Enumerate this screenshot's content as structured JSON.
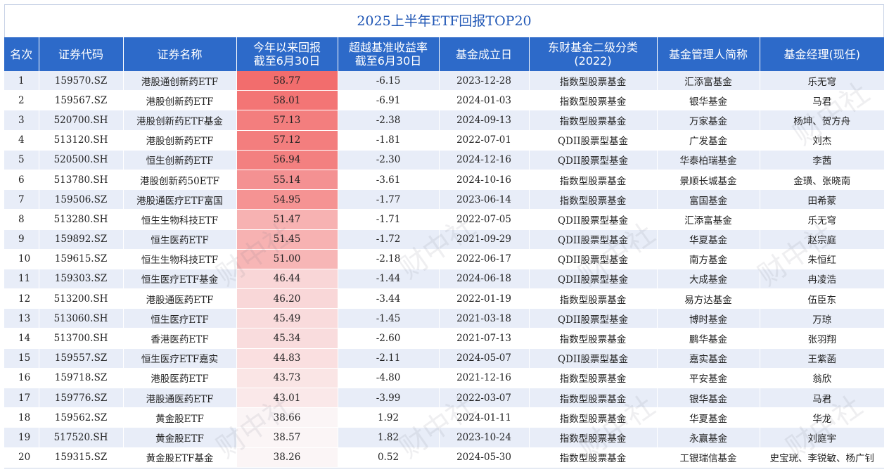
{
  "title": "2025上半年ETF回报TOP20",
  "watermark": "财中社",
  "headers": [
    "名次",
    "证券代码",
    "证券名称",
    "今年以来回报\n截至6月30日",
    "超越基准收益率\n截至6月30日",
    "基金成立日",
    "东财基金二级分类\n(2022)",
    "基金管理人简称",
    "基金经理(现任)"
  ],
  "colors": {
    "header_bg": "#2d6ac9",
    "title_color": "#1f56b5",
    "stripe": "#e8edf8",
    "heat_high": "#f26d6d",
    "heat_low": "#fbf5f6"
  },
  "rows": [
    {
      "rank": "1",
      "code": "159570.SZ",
      "name": "港股通创新药ETF",
      "ret": "58.77",
      "excess": "-6.15",
      "date": "2023-12-28",
      "category": "指数型股票基金",
      "manager": "汇添富基金",
      "fm": "乐无穹"
    },
    {
      "rank": "2",
      "code": "159567.SZ",
      "name": "港股创新药ETF",
      "ret": "58.01",
      "excess": "-6.91",
      "date": "2024-01-03",
      "category": "指数型股票基金",
      "manager": "银华基金",
      "fm": "马君"
    },
    {
      "rank": "3",
      "code": "520700.SH",
      "name": "港股创新药ETF基金",
      "ret": "57.13",
      "excess": "-2.38",
      "date": "2024-09-13",
      "category": "指数型股票基金",
      "manager": "万家基金",
      "fm": "杨坤、贺方舟"
    },
    {
      "rank": "4",
      "code": "513120.SH",
      "name": "港股创新药ETF",
      "ret": "57.12",
      "excess": "-1.81",
      "date": "2022-07-01",
      "category": "QDII股票型基金",
      "manager": "广发基金",
      "fm": "刘杰"
    },
    {
      "rank": "5",
      "code": "520500.SH",
      "name": "恒生创新药ETF",
      "ret": "56.94",
      "excess": "-2.30",
      "date": "2024-12-16",
      "category": "QDII股票型基金",
      "manager": "华泰柏瑞基金",
      "fm": "李茜"
    },
    {
      "rank": "6",
      "code": "513780.SH",
      "name": "港股创新药50ETF",
      "ret": "55.14",
      "excess": "-3.61",
      "date": "2024-10-16",
      "category": "指数型股票基金",
      "manager": "景顺长城基金",
      "fm": "金璜、张晓南"
    },
    {
      "rank": "7",
      "code": "159506.SZ",
      "name": "港股通医疗ETF富国",
      "ret": "54.95",
      "excess": "-1.77",
      "date": "2023-06-14",
      "category": "指数型股票基金",
      "manager": "富国基金",
      "fm": "田希蒙"
    },
    {
      "rank": "8",
      "code": "513280.SH",
      "name": "恒生生物科技ETF",
      "ret": "51.47",
      "excess": "-1.71",
      "date": "2022-07-05",
      "category": "QDII股票型基金",
      "manager": "汇添富基金",
      "fm": "乐无穹"
    },
    {
      "rank": "9",
      "code": "159892.SZ",
      "name": "恒生医药ETF",
      "ret": "51.45",
      "excess": "-1.72",
      "date": "2021-09-29",
      "category": "QDII股票型基金",
      "manager": "华夏基金",
      "fm": "赵宗庭"
    },
    {
      "rank": "10",
      "code": "159615.SZ",
      "name": "恒生生物科技ETF",
      "ret": "51.00",
      "excess": "-2.18",
      "date": "2022-06-17",
      "category": "QDII股票型基金",
      "manager": "南方基金",
      "fm": "朱恒红"
    },
    {
      "rank": "11",
      "code": "159303.SZ",
      "name": "恒生医疗ETF基金",
      "ret": "46.44",
      "excess": "-1.44",
      "date": "2024-06-18",
      "category": "QDII股票型基金",
      "manager": "大成基金",
      "fm": "冉凌浩"
    },
    {
      "rank": "12",
      "code": "513200.SH",
      "name": "港股通医药ETF",
      "ret": "46.20",
      "excess": "-3.44",
      "date": "2022-01-19",
      "category": "指数型股票基金",
      "manager": "易方达基金",
      "fm": "伍臣东"
    },
    {
      "rank": "13",
      "code": "513060.SH",
      "name": "恒生医疗ETF",
      "ret": "45.49",
      "excess": "-1.45",
      "date": "2021-03-18",
      "category": "QDII股票型基金",
      "manager": "博时基金",
      "fm": "万琼"
    },
    {
      "rank": "14",
      "code": "513700.SH",
      "name": "香港医药ETF",
      "ret": "45.34",
      "excess": "-2.60",
      "date": "2021-07-13",
      "category": "指数型股票基金",
      "manager": "鹏华基金",
      "fm": "张羽翔"
    },
    {
      "rank": "15",
      "code": "159557.SZ",
      "name": "恒生医疗ETF嘉实",
      "ret": "44.83",
      "excess": "-2.11",
      "date": "2024-05-07",
      "category": "QDII股票型基金",
      "manager": "嘉实基金",
      "fm": "王紫菡"
    },
    {
      "rank": "16",
      "code": "159718.SZ",
      "name": "港股医药ETF",
      "ret": "43.73",
      "excess": "-4.80",
      "date": "2021-12-16",
      "category": "指数型股票基金",
      "manager": "平安基金",
      "fm": "翁欣"
    },
    {
      "rank": "17",
      "code": "159776.SZ",
      "name": "港股通医药ETF",
      "ret": "43.01",
      "excess": "-3.99",
      "date": "2022-03-07",
      "category": "指数型股票基金",
      "manager": "银华基金",
      "fm": "马君"
    },
    {
      "rank": "18",
      "code": "159562.SZ",
      "name": "黄金股ETF",
      "ret": "38.66",
      "excess": "1.92",
      "date": "2024-01-11",
      "category": "指数型股票基金",
      "manager": "华夏基金",
      "fm": "华龙"
    },
    {
      "rank": "19",
      "code": "517520.SH",
      "name": "黄金股ETF",
      "ret": "38.57",
      "excess": "1.82",
      "date": "2023-10-24",
      "category": "指数型股票基金",
      "manager": "永赢基金",
      "fm": "刘庭宇"
    },
    {
      "rank": "20",
      "code": "159315.SZ",
      "name": "黄金股ETF基金",
      "ret": "38.26",
      "excess": "0.52",
      "date": "2024-05-30",
      "category": "指数型股票基金",
      "manager": "工银瑞信基金",
      "fm": "史宝珖、李锐敏、杨广钊"
    }
  ]
}
